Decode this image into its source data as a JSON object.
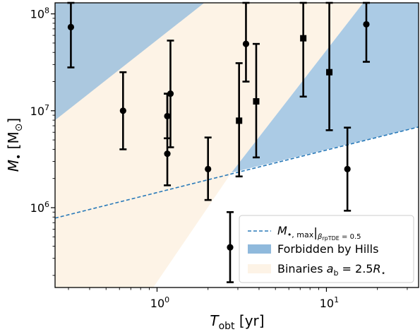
{
  "chart_data": {
    "type": "scatter",
    "x_scale": "log",
    "y_scale": "log",
    "xlim": [
      0.25,
      35
    ],
    "ylim": [
      150000,
      130000000
    ],
    "grid": false,
    "legend_position": "bottom-right",
    "xlabel": {
      "main": "T",
      "sub": "obt",
      "unit": " [yr]"
    },
    "ylabel": {
      "main": "M",
      "sub": "•",
      "unit": " [M",
      "unit_sub": "⊙",
      "unit_close": "]"
    },
    "x_ticks": [
      {
        "value": 1,
        "base": "10",
        "exp": "0"
      },
      {
        "value": 10,
        "base": "10",
        "exp": "1"
      }
    ],
    "y_ticks": [
      {
        "value": 1000000,
        "base": "10",
        "exp": "6"
      },
      {
        "value": 10000000,
        "base": "10",
        "exp": "7"
      },
      {
        "value": 100000000,
        "base": "10",
        "exp": "8"
      }
    ],
    "colors": {
      "forbidden": "#8fb9dc",
      "binaries": "#fdf3e6",
      "line": "#2a7ab9",
      "points": "#000000"
    },
    "series": [
      {
        "name": "circle_points",
        "marker": "circle",
        "points": [
          {
            "x": 0.31,
            "y": 73000000,
            "ylo": 28000000,
            "yhi": 130000000
          },
          {
            "x": 0.63,
            "y": 10000000,
            "ylo": 4000000,
            "yhi": 25000000
          },
          {
            "x": 1.15,
            "y": 8800000,
            "ylo": 5200000,
            "yhi": 15000000
          },
          {
            "x": 1.15,
            "y": 3600000,
            "ylo": 1700000,
            "yhi": 15000000
          },
          {
            "x": 1.2,
            "y": 15000000,
            "ylo": 4200000,
            "yhi": 53000000
          },
          {
            "x": 2.0,
            "y": 2500000,
            "ylo": 1200000,
            "yhi": 5300000
          },
          {
            "x": 2.7,
            "y": 390000,
            "ylo": 170000,
            "yhi": 900000
          },
          {
            "x": 3.35,
            "y": 49000000,
            "ylo": 20000000,
            "yhi": 130000000
          },
          {
            "x": 13.3,
            "y": 2500000,
            "ylo": 930000,
            "yhi": 6700000
          },
          {
            "x": 17.2,
            "y": 78000000,
            "ylo": 32000000,
            "yhi": 130000000
          }
        ]
      },
      {
        "name": "square_points",
        "marker": "square",
        "points": [
          {
            "x": 3.05,
            "y": 7900000,
            "ylo": 2100000,
            "yhi": 31000000
          },
          {
            "x": 3.85,
            "y": 12500000,
            "ylo": 3300000,
            "yhi": 49000000
          },
          {
            "x": 7.3,
            "y": 56000000,
            "ylo": 14000000,
            "yhi": 130000000
          },
          {
            "x": 10.4,
            "y": 25000000,
            "ylo": 6300000,
            "yhi": 130000000
          }
        ]
      }
    ],
    "max_line": {
      "x": [
        0.25,
        35
      ],
      "y": [
        780000,
        6800000
      ]
    },
    "forbidden_regions": [
      [
        [
          0.25,
          8000000
        ],
        [
          0.25,
          130000000
        ],
        [
          1.9,
          130000000
        ]
      ],
      [
        [
          2.75,
          2300000
        ],
        [
          35,
          6800000
        ],
        [
          35,
          130000000
        ],
        [
          16.5,
          130000000
        ]
      ]
    ],
    "binaries_region": [
      [
        0.25,
        16000000
      ],
      [
        0.25,
        130000000
      ],
      [
        16.5,
        130000000
      ],
      [
        2.75,
        2300000
      ],
      [
        0.95,
        150000
      ],
      [
        0.25,
        150000
      ]
    ],
    "legend": [
      {
        "key": "max_line",
        "main": "M",
        "sub1": "•, max",
        "bar": "|",
        "sub2": "β",
        "sub2b": "rpTDE",
        "sub2c": " = 0.5"
      },
      {
        "key": "forbidden",
        "label": "Forbidden by Hills"
      },
      {
        "key": "binaries",
        "main": "Binaries ",
        "var": "a",
        "var_sub": "b",
        "eq": " = 2.5",
        "r": "R",
        "r_sub": "⋆"
      }
    ]
  }
}
